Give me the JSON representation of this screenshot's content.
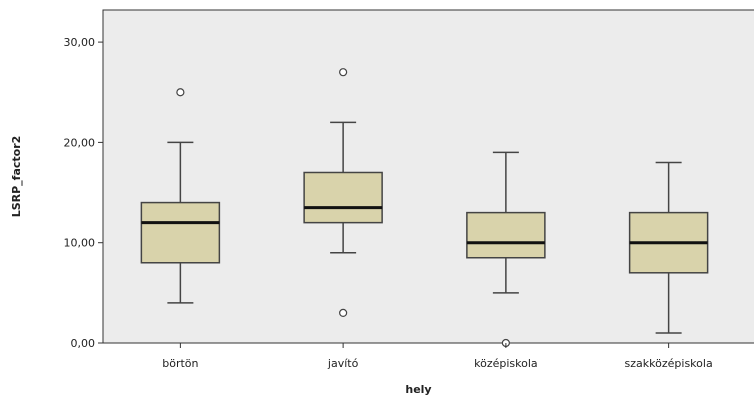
{
  "chart_data": {
    "type": "boxplot",
    "xlabel": "hely",
    "ylabel": "LSRP_factor2",
    "ylim": [
      0,
      30
    ],
    "y_ticks": [
      0,
      10,
      20,
      30
    ],
    "y_tick_labels": [
      "0,00",
      "10,00",
      "20,00",
      "30,00"
    ],
    "grid": false,
    "categories": [
      "börtön",
      "javító",
      "középiskola",
      "szakközépiskola"
    ],
    "boxes": [
      {
        "category": "börtön",
        "min": 4,
        "q1": 8,
        "median": 12,
        "q3": 14,
        "max": 20,
        "outliers": [
          25
        ]
      },
      {
        "category": "javító",
        "min": 9,
        "q1": 12,
        "median": 13.5,
        "q3": 17,
        "max": 22,
        "outliers": [
          27,
          3
        ]
      },
      {
        "category": "középiskola",
        "min": 5,
        "q1": 8.5,
        "median": 10,
        "q3": 13,
        "max": 19,
        "outliers": [
          0
        ]
      },
      {
        "category": "szakközépiskola",
        "min": 1,
        "q1": 7,
        "median": 10,
        "q3": 13,
        "max": 18,
        "outliers": []
      }
    ],
    "colors": {
      "plot_background": "#ececec",
      "box_fill": "#d9d3ab",
      "box_stroke": "#444444",
      "median": "#111111"
    }
  }
}
